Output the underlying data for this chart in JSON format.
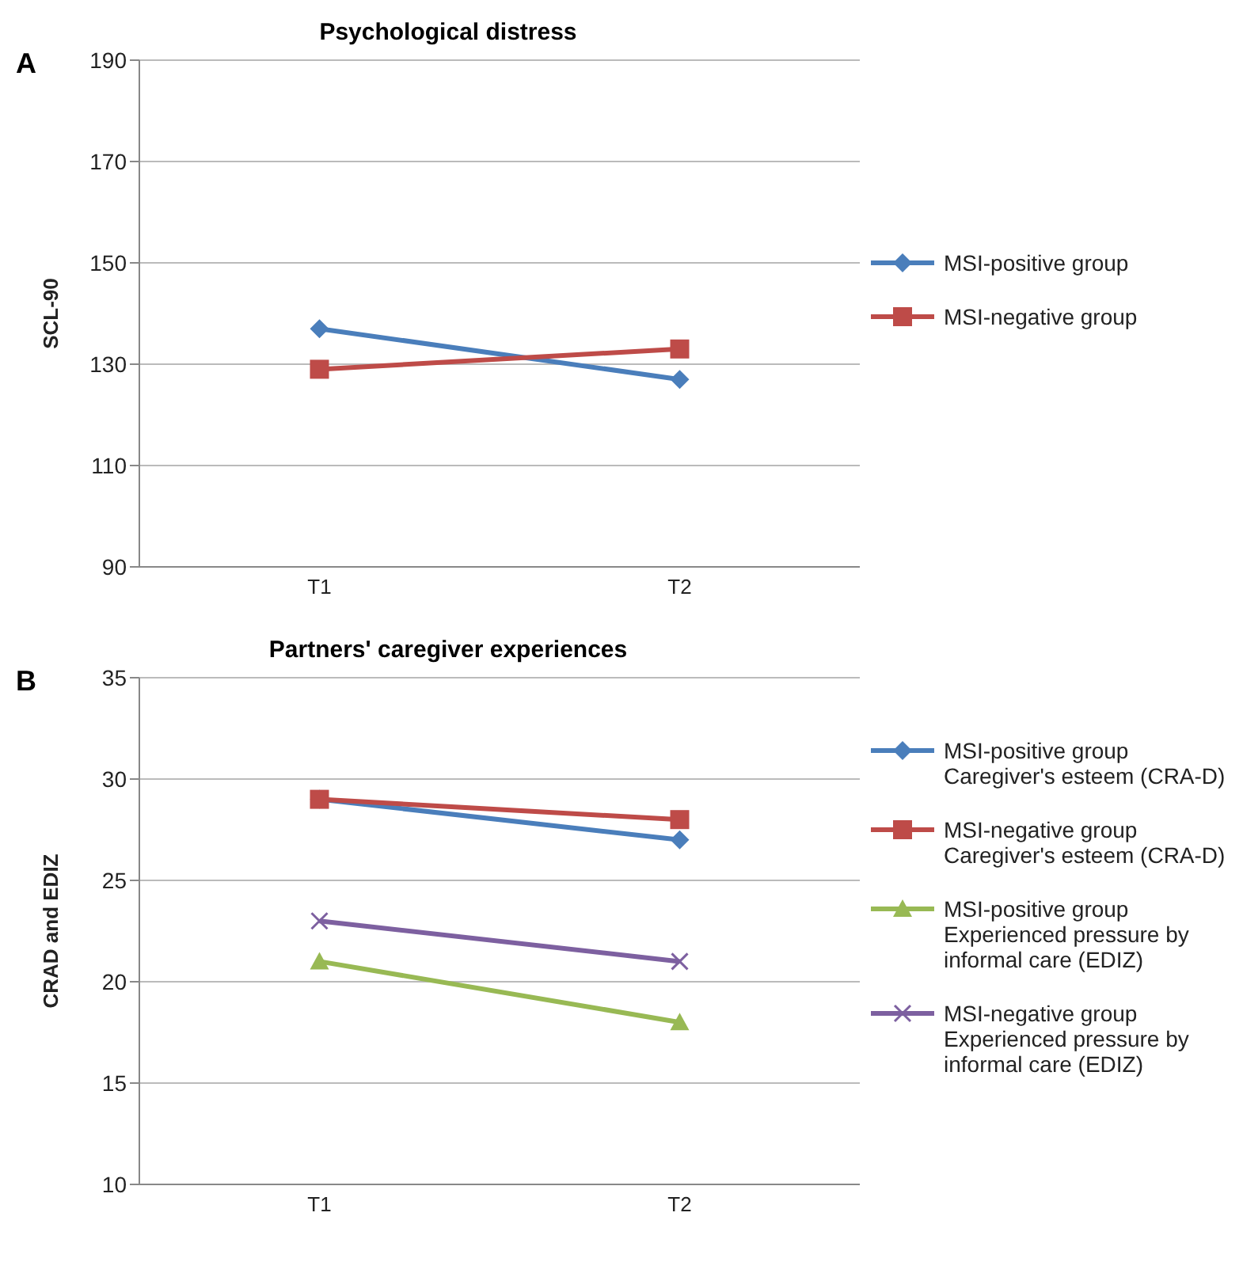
{
  "chart_data": [
    {
      "type": "line",
      "title": "Psychological distress",
      "annotations": [
        "A"
      ],
      "ylabel": "SCL-90",
      "categories": [
        "T1",
        "T2"
      ],
      "ylim": [
        90,
        190
      ],
      "yticks": [
        90,
        110,
        130,
        150,
        170,
        190
      ],
      "grid": "y",
      "legend": "right",
      "series": [
        {
          "name": "MSI-positive group",
          "color": "#4a7ebb",
          "marker": "diamond",
          "values": [
            137,
            127
          ]
        },
        {
          "name": "MSI-negative group",
          "color": "#be4b48",
          "marker": "square",
          "values": [
            129,
            133
          ]
        }
      ]
    },
    {
      "type": "line",
      "title": "Partners' caregiver experiences",
      "annotations": [
        "B"
      ],
      "ylabel": "CRAD and EDIZ",
      "categories": [
        "T1",
        "T2"
      ],
      "ylim": [
        10,
        35
      ],
      "yticks": [
        10,
        15,
        20,
        25,
        30,
        35
      ],
      "grid": "y",
      "legend": "right",
      "series": [
        {
          "name": "MSI-positive group Caregiver's esteem (CRA-D)",
          "color": "#4a7ebb",
          "marker": "diamond",
          "values": [
            29,
            27
          ]
        },
        {
          "name": "MSI-negative group Caregiver's esteem (CRA-D)",
          "color": "#be4b48",
          "marker": "square",
          "values": [
            29,
            28
          ]
        },
        {
          "name": "MSI-positive group Experienced pressure by informal care (EDIZ)",
          "color": "#98b954",
          "marker": "triangle",
          "values": [
            21,
            18
          ]
        },
        {
          "name": "MSI-negative group Experienced pressure by informal care (EDIZ)",
          "color": "#7d60a0",
          "marker": "cross",
          "values": [
            23,
            21
          ]
        }
      ]
    }
  ]
}
